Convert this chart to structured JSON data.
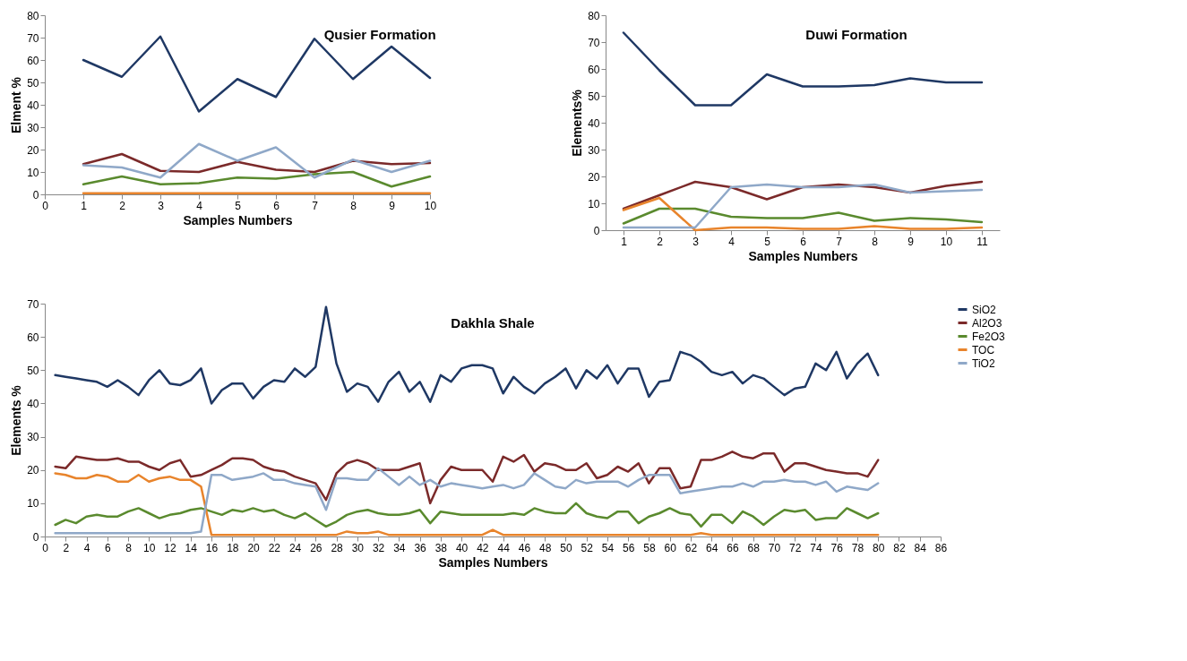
{
  "chart_data": [
    {
      "type": "line",
      "title": "Qusier Formation",
      "xlabel": "Samples Numbers",
      "ylabel": "Elment %",
      "x": [
        1,
        2,
        3,
        4,
        5,
        6,
        7,
        8,
        9,
        10
      ],
      "xlim": [
        0,
        10
      ],
      "xticks": [
        0,
        1,
        2,
        3,
        4,
        5,
        6,
        7,
        8,
        9,
        10
      ],
      "ylim": [
        0,
        80
      ],
      "yticks": [
        0,
        10,
        20,
        30,
        40,
        50,
        60,
        70,
        80
      ],
      "grid": false,
      "series": [
        {
          "color": "#1f3864",
          "values": [
            60,
            52.5,
            70.5,
            37,
            51.5,
            43.5,
            69.5,
            51.5,
            66,
            52
          ]
        },
        {
          "color": "#7b2a2a",
          "values": [
            13.5,
            18,
            10.5,
            10,
            14.5,
            11,
            10,
            15,
            13.5,
            14
          ]
        },
        {
          "color": "#5a8a2e",
          "values": [
            4.5,
            8,
            4.5,
            5,
            7.5,
            7,
            9,
            10,
            3.5,
            8
          ]
        },
        {
          "color": "#e8842c",
          "values": [
            0.5,
            0.5,
            0.5,
            0.5,
            0.5,
            0.5,
            0.5,
            0.5,
            0.5,
            0.5
          ]
        },
        {
          "color": "#8fa8c8",
          "values": [
            13,
            12,
            7.5,
            22.5,
            15,
            21,
            7.5,
            15.5,
            10,
            15
          ]
        }
      ]
    },
    {
      "type": "line",
      "title": "Duwi Formation",
      "xlabel": "Samples Numbers",
      "ylabel": "Elements%",
      "categories": [
        "1",
        "2",
        "3",
        "4",
        "5",
        "6",
        "7",
        "8",
        "9",
        "10",
        "11"
      ],
      "ylim": [
        0,
        80
      ],
      "yticks": [
        0,
        10,
        20,
        30,
        40,
        50,
        60,
        70,
        80
      ],
      "grid": false,
      "series": [
        {
          "color": "#1f3864",
          "values": [
            73.5,
            59.5,
            46.5,
            46.5,
            58,
            53.5,
            53.5,
            54,
            56.5,
            55,
            55
          ]
        },
        {
          "color": "#7b2a2a",
          "values": [
            8,
            13,
            18,
            16,
            11.5,
            16,
            17,
            16,
            14,
            16.5,
            18
          ]
        },
        {
          "color": "#5a8a2e",
          "values": [
            2.5,
            8,
            8,
            5,
            4.5,
            4.5,
            6.5,
            3.5,
            4.5,
            4,
            3
          ]
        },
        {
          "color": "#e8842c",
          "values": [
            7.5,
            12,
            0,
            1,
            1,
            0.5,
            0.5,
            1.5,
            0.5,
            0.5,
            1
          ]
        },
        {
          "color": "#8fa8c8",
          "values": [
            1,
            1,
            1,
            16,
            17,
            16,
            16,
            17,
            14,
            14.5,
            15
          ]
        }
      ]
    },
    {
      "type": "line",
      "title": "Dakhla Shale",
      "xlabel": "Samples Numbers",
      "ylabel": "Elements %",
      "x": [
        1,
        2,
        3,
        4,
        5,
        6,
        7,
        8,
        9,
        10,
        11,
        12,
        13,
        14,
        15,
        16,
        17,
        18,
        19,
        20,
        21,
        22,
        23,
        24,
        25,
        26,
        27,
        28,
        29,
        30,
        31,
        32,
        33,
        34,
        35,
        36,
        37,
        38,
        39,
        40,
        41,
        42,
        43,
        44,
        45,
        46,
        47,
        48,
        49,
        50,
        51,
        52,
        53,
        54,
        55,
        56,
        57,
        58,
        59,
        60,
        61,
        62,
        63,
        64,
        65,
        66,
        67,
        68,
        69,
        70,
        71,
        72,
        73,
        74,
        75,
        76,
        77,
        78,
        79,
        80
      ],
      "xlim": [
        0,
        86
      ],
      "xticks": [
        0,
        2,
        4,
        6,
        8,
        10,
        12,
        14,
        16,
        18,
        20,
        22,
        24,
        26,
        28,
        30,
        32,
        34,
        36,
        38,
        40,
        42,
        44,
        46,
        48,
        50,
        52,
        54,
        56,
        58,
        60,
        62,
        64,
        66,
        68,
        70,
        72,
        74,
        76,
        78,
        80,
        82,
        84,
        86
      ],
      "ylim": [
        0,
        70
      ],
      "yticks": [
        0,
        10,
        20,
        30,
        40,
        50,
        60,
        70
      ],
      "grid": false,
      "legend": "right",
      "series": [
        {
          "name": "SiO2",
          "color": "#1f3864",
          "values": [
            48.5,
            48,
            47.5,
            47,
            46.5,
            45,
            47,
            45,
            42.5,
            47,
            50,
            46,
            45.5,
            47,
            50.5,
            40,
            44,
            46,
            46,
            41.5,
            45,
            47,
            46.5,
            50.5,
            48,
            51,
            69,
            52,
            43.5,
            46,
            45,
            40.5,
            46.5,
            49.5,
            43.5,
            46.5,
            40.5,
            48.5,
            46.5,
            50.5,
            51.5,
            51.5,
            50.5,
            43,
            48,
            45,
            43,
            46,
            48,
            50.5,
            44.5,
            50,
            47.5,
            51.5,
            46,
            50.5,
            50.5,
            42,
            46.5,
            47,
            55.5,
            54.5,
            52.5,
            49.5,
            48.5,
            49.5,
            46,
            48.5,
            47.5,
            45,
            42.5,
            44.5,
            45,
            52,
            50,
            55.5,
            47.5,
            52,
            55,
            48.5
          ]
        },
        {
          "name": "Al2O3",
          "color": "#7b2a2a",
          "values": [
            21,
            20.5,
            24,
            23.5,
            23,
            23,
            23.5,
            22.5,
            22.5,
            21,
            20,
            22,
            23,
            18,
            18.5,
            20,
            21.5,
            23.5,
            23.5,
            23,
            21,
            20,
            19.5,
            18,
            17,
            16,
            11,
            19,
            22,
            23,
            22,
            20,
            20,
            20,
            21,
            22,
            10,
            17,
            21,
            20,
            20,
            20,
            16.5,
            24,
            22.5,
            24.5,
            19.5,
            22,
            21.5,
            20,
            20,
            22,
            17.5,
            18.5,
            21,
            19.5,
            22,
            16,
            20.5,
            20.5,
            14.5,
            15,
            23,
            23,
            24,
            25.5,
            24,
            23.5,
            25,
            25,
            19.5,
            22,
            22,
            21,
            20,
            19.5,
            19,
            19,
            18,
            23
          ]
        },
        {
          "name": "Fe2O3",
          "color": "#5a8a2e",
          "values": [
            3.5,
            5,
            4,
            6,
            6.5,
            6,
            6,
            7.5,
            8.5,
            7,
            5.5,
            6.5,
            7,
            8,
            8.5,
            7.5,
            6.5,
            8,
            7.5,
            8.5,
            7.5,
            8,
            6.5,
            5.5,
            7,
            5,
            3,
            4.5,
            6.5,
            7.5,
            8,
            7,
            6.5,
            6.5,
            7,
            8,
            4,
            7.5,
            7,
            6.5,
            6.5,
            6.5,
            6.5,
            6.5,
            7,
            6.5,
            8.5,
            7.5,
            7,
            7,
            10,
            7,
            6,
            5.5,
            7.5,
            7.5,
            4,
            6,
            7,
            8.5,
            7,
            6.5,
            3,
            6.5,
            6.5,
            4,
            7.5,
            6,
            3.5,
            6,
            8,
            7.5,
            8,
            5,
            5.5,
            5.5,
            8.5,
            7,
            5.5,
            7
          ]
        },
        {
          "name": "TOC",
          "color": "#e8842c",
          "values": [
            19,
            18.5,
            17.5,
            17.5,
            18.5,
            18,
            16.5,
            16.5,
            18.5,
            16.5,
            17.5,
            18,
            17,
            17,
            15,
            0.5,
            0.5,
            0.5,
            0.5,
            0.5,
            0.5,
            0.5,
            0.5,
            0.5,
            0.5,
            0.5,
            0.5,
            0.5,
            1.5,
            1,
            1,
            1.5,
            0.5,
            0.5,
            0.5,
            0.5,
            0.5,
            0.5,
            0.5,
            0.5,
            0.5,
            0.5,
            2,
            0.5,
            0.5,
            0.5,
            0.5,
            0.5,
            0.5,
            0.5,
            0.5,
            0.5,
            0.5,
            0.5,
            0.5,
            0.5,
            0.5,
            0.5,
            0.5,
            0.5,
            0.5,
            0.5,
            1,
            0.5,
            0.5,
            0.5,
            0.5,
            0.5,
            0.5,
            0.5,
            0.5,
            0.5,
            0.5,
            0.5,
            0.5,
            0.5,
            0.5,
            0.5,
            0.5,
            0.5
          ]
        },
        {
          "name": "TiO2",
          "color": "#8fa8c8",
          "values": [
            1,
            1,
            1,
            1,
            1,
            1,
            1,
            1,
            1,
            1,
            1,
            1,
            1,
            1,
            1.5,
            18.5,
            18.5,
            17,
            17.5,
            18,
            19,
            17,
            17,
            16,
            15.5,
            15,
            8,
            17.5,
            17.5,
            17,
            17,
            20.5,
            18,
            15.5,
            18,
            15.5,
            17,
            15,
            16,
            15.5,
            15,
            14.5,
            15,
            15.5,
            14.5,
            15.5,
            19,
            17,
            15,
            14.5,
            17,
            16,
            16.5,
            16.5,
            16.5,
            15,
            17,
            18.5,
            18.5,
            18.5,
            13,
            13.5,
            14,
            14.5,
            15,
            15,
            16,
            15,
            16.5,
            16.5,
            17,
            16.5,
            16.5,
            15.5,
            16.5,
            13.5,
            15,
            14.5,
            14,
            16
          ]
        }
      ]
    }
  ]
}
